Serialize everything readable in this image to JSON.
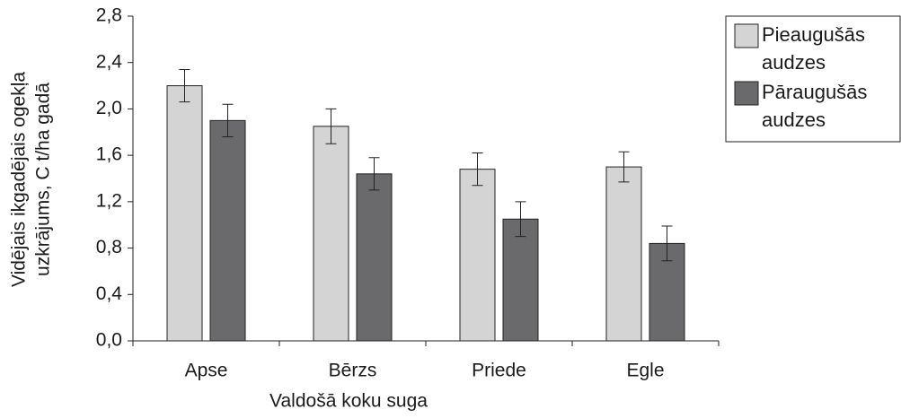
{
  "chart_data": {
    "type": "bar",
    "categories": [
      "Apse",
      "Bērzs",
      "Priede",
      "Egle"
    ],
    "series": [
      {
        "name": "Pieaugušās audzes",
        "color": "#d4d4d4",
        "values": [
          2.2,
          1.85,
          1.48,
          1.5
        ],
        "errors": [
          0.14,
          0.15,
          0.14,
          0.13
        ]
      },
      {
        "name": "Pāraugušās audzes",
        "color": "#6a6a6c",
        "values": [
          1.9,
          1.44,
          1.05,
          0.84
        ],
        "errors": [
          0.14,
          0.14,
          0.15,
          0.15
        ]
      }
    ],
    "xlabel": "Valdošā koku suga",
    "ylabel": [
      "Vidējais ikgadējais ogekļa",
      "uzkrājums, C t/ha   gadā"
    ],
    "ylim": [
      0,
      2.8
    ],
    "yticks": [
      {
        "value": 0,
        "label": "0,0"
      },
      {
        "value": 0.4,
        "label": "0,4"
      },
      {
        "value": 0.8,
        "label": "0,8"
      },
      {
        "value": 1.2,
        "label": "1,2"
      },
      {
        "value": 1.6,
        "label": "1,6"
      },
      {
        "value": 2.0,
        "label": "2,0"
      },
      {
        "value": 2.4,
        "label": "2,4"
      },
      {
        "value": 2.8,
        "label": "2,8"
      }
    ],
    "grid": false,
    "legend": "right"
  }
}
